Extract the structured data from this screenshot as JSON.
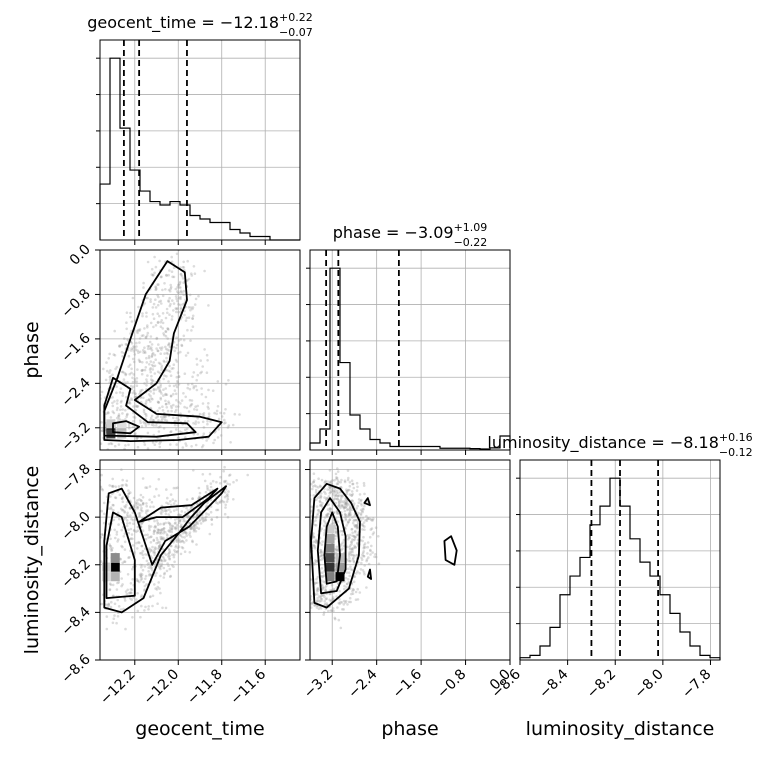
{
  "chart_data": {
    "type": "corner",
    "params": [
      "geocent_time",
      "phase",
      "luminosity_distance"
    ],
    "titles": {
      "geocent_time": {
        "name": "geocent_time",
        "median": "−12.18",
        "plus": "+0.22",
        "minus": "−0.07"
      },
      "phase": {
        "name": "phase",
        "median": "−3.09",
        "plus": "+1.09",
        "minus": "−0.22"
      },
      "luminosity_distance": {
        "name": "luminosity_distance",
        "median": "−8.18",
        "plus": "+0.16",
        "minus": "−0.12"
      }
    },
    "axes": {
      "geocent_time": {
        "range": [
          -12.36,
          -11.44
        ],
        "ticks": [
          -12.2,
          -12.0,
          -11.8,
          -11.6
        ],
        "tick_labels": [
          "−12.2",
          "−12.0",
          "−11.8",
          "−11.6"
        ],
        "label": "geocent_time"
      },
      "phase": {
        "range": [
          -3.6,
          0.0
        ],
        "ticks": [
          -3.2,
          -2.4,
          -1.6,
          -0.8,
          0.0
        ],
        "tick_labels": [
          "−3.2",
          "−2.4",
          "−1.6",
          "−0.8",
          "0.0"
        ],
        "label": "phase"
      },
      "luminosity_distance": {
        "range": [
          -8.6,
          -7.76
        ],
        "ticks": [
          -8.6,
          -8.4,
          -8.2,
          -8.0,
          -7.8
        ],
        "tick_labels": [
          "−8.6",
          "−8.4",
          "−8.2",
          "−8.0",
          "−7.8"
        ],
        "label": "luminosity_distance"
      }
    },
    "histograms": {
      "geocent_time": {
        "bin_edges": [
          -12.36,
          -12.314,
          -12.268,
          -12.222,
          -12.176,
          -12.13,
          -12.084,
          -12.038,
          -11.992,
          -11.946,
          -11.9,
          -11.854,
          -11.808,
          -11.762,
          -11.716,
          -11.67,
          -11.624,
          -11.578,
          -11.532,
          -11.486,
          -11.44
        ],
        "counts": [
          16,
          52,
          32,
          20,
          14,
          11,
          10,
          11,
          10,
          7,
          6,
          5,
          5,
          3,
          2,
          1,
          1,
          0,
          0,
          0
        ],
        "quantiles": [
          -12.25,
          -12.18,
          -11.96
        ]
      },
      "phase": {
        "bin_edges": [
          -3.6,
          -3.42,
          -3.24,
          -3.06,
          -2.88,
          -2.7,
          -2.52,
          -2.34,
          -2.16,
          -1.98,
          -1.8,
          -1.62,
          -1.44,
          -1.26,
          -1.08,
          -0.9,
          -0.72,
          -0.54,
          -0.36,
          -0.18,
          0.0
        ],
        "counts": [
          2,
          6,
          52,
          25,
          10,
          6,
          3,
          2,
          1,
          1,
          1,
          1,
          1,
          0.5,
          0.5,
          0.5,
          0.4,
          0.3,
          0.6,
          4
        ],
        "quantiles": [
          -3.31,
          -3.09,
          -2.0
        ]
      },
      "luminosity_distance": {
        "bin_edges": [
          -8.6,
          -8.558,
          -8.516,
          -8.474,
          -8.432,
          -8.39,
          -8.348,
          -8.306,
          -8.264,
          -8.222,
          -8.18,
          -8.138,
          -8.096,
          -8.054,
          -8.012,
          -7.97,
          -7.928,
          -7.886,
          -7.844,
          -7.802,
          -7.76
        ],
        "counts": [
          0.5,
          1,
          3,
          7,
          14,
          18,
          22,
          29,
          33,
          39,
          33,
          26,
          21,
          18,
          14,
          10,
          6,
          3,
          1,
          0.5
        ],
        "quantiles": [
          -8.3,
          -8.18,
          -8.02
        ]
      }
    },
    "contours": {
      "phase_vs_geocent_time": [
        [
          [
            -12.34,
            -3.42
          ],
          [
            -12.22,
            -3.44
          ],
          [
            -12.0,
            -3.42
          ],
          [
            -11.86,
            -3.36
          ],
          [
            -11.8,
            -3.1
          ],
          [
            -11.9,
            -3.0
          ],
          [
            -12.1,
            -2.95
          ],
          [
            -12.2,
            -2.7
          ],
          [
            -12.1,
            -2.4
          ],
          [
            -12.04,
            -2.0
          ],
          [
            -12.02,
            -1.5
          ],
          [
            -11.96,
            -0.9
          ],
          [
            -11.97,
            -0.4
          ],
          [
            -12.05,
            -0.2
          ],
          [
            -12.15,
            -0.8
          ],
          [
            -12.22,
            -1.6
          ],
          [
            -12.28,
            -2.3
          ],
          [
            -12.34,
            -2.9
          ]
        ],
        [
          [
            -12.34,
            -3.34
          ],
          [
            -12.1,
            -3.36
          ],
          [
            -11.92,
            -3.28
          ],
          [
            -11.96,
            -3.12
          ],
          [
            -12.14,
            -3.1
          ],
          [
            -12.24,
            -2.8
          ],
          [
            -12.22,
            -2.5
          ],
          [
            -12.3,
            -2.3
          ],
          [
            -12.34,
            -2.8
          ]
        ],
        [
          [
            -12.3,
            -3.28
          ],
          [
            -12.22,
            -3.3
          ],
          [
            -12.18,
            -3.18
          ],
          [
            -12.24,
            -3.08
          ],
          [
            -12.3,
            -3.12
          ]
        ]
      ],
      "luminosity_distance_vs_geocent_time": [
        [
          [
            -12.34,
            -8.38
          ],
          [
            -12.26,
            -8.4
          ],
          [
            -12.16,
            -8.34
          ],
          [
            -12.08,
            -8.16
          ],
          [
            -12.0,
            -8.07
          ],
          [
            -11.94,
            -8.0
          ],
          [
            -11.88,
            -7.94
          ],
          [
            -11.78,
            -7.87
          ],
          [
            -11.8,
            -7.9
          ],
          [
            -11.95,
            -8.04
          ],
          [
            -12.06,
            -8.1
          ],
          [
            -12.12,
            -8.2
          ],
          [
            -12.2,
            -7.98
          ],
          [
            -12.26,
            -7.88
          ],
          [
            -12.32,
            -7.9
          ],
          [
            -12.34,
            -8.1
          ]
        ],
        [
          [
            -12.33,
            -8.34
          ],
          [
            -12.2,
            -8.33
          ],
          [
            -12.2,
            -8.18
          ],
          [
            -12.26,
            -8.0
          ],
          [
            -12.3,
            -7.98
          ],
          [
            -12.33,
            -8.12
          ]
        ],
        [
          [
            -12.18,
            -8.02
          ],
          [
            -12.1,
            -8.0
          ],
          [
            -11.98,
            -8.0
          ],
          [
            -11.86,
            -7.92
          ],
          [
            -11.82,
            -7.88
          ],
          [
            -11.94,
            -7.95
          ],
          [
            -12.08,
            -7.96
          ]
        ]
      ],
      "luminosity_distance_vs_phase": [
        [
          [
            -3.52,
            -8.36
          ],
          [
            -3.3,
            -8.38
          ],
          [
            -2.9,
            -8.3
          ],
          [
            -2.72,
            -8.16
          ],
          [
            -2.7,
            -8.02
          ],
          [
            -2.86,
            -7.94
          ],
          [
            -3.06,
            -7.88
          ],
          [
            -3.3,
            -7.86
          ],
          [
            -3.52,
            -7.92
          ],
          [
            -3.58,
            -8.1
          ]
        ],
        [
          [
            -3.4,
            -8.32
          ],
          [
            -3.12,
            -8.31
          ],
          [
            -2.96,
            -8.22
          ],
          [
            -2.96,
            -8.08
          ],
          [
            -3.06,
            -7.98
          ],
          [
            -3.24,
            -7.92
          ],
          [
            -3.4,
            -7.98
          ],
          [
            -3.46,
            -8.14
          ]
        ],
        [
          [
            -3.3,
            -8.28
          ],
          [
            -3.12,
            -8.27
          ],
          [
            -3.06,
            -8.16
          ],
          [
            -3.1,
            -8.04
          ],
          [
            -3.2,
            -7.98
          ],
          [
            -3.3,
            -8.04
          ],
          [
            -3.34,
            -8.16
          ]
        ],
        [
          [
            -1.16,
            -8.18
          ],
          [
            -1.0,
            -8.2
          ],
          [
            -0.96,
            -8.14
          ],
          [
            -1.06,
            -8.08
          ],
          [
            -1.18,
            -8.1
          ]
        ],
        [
          [
            -2.62,
            -7.94
          ],
          [
            -2.52,
            -7.95
          ],
          [
            -2.56,
            -7.92
          ]
        ],
        [
          [
            -2.56,
            -8.25
          ],
          [
            -2.5,
            -8.26
          ],
          [
            -2.52,
            -8.22
          ]
        ]
      ]
    },
    "density_cells": {
      "phase_vs_geocent_time": [
        {
          "x": -12.31,
          "y": -3.22,
          "level": 1.0
        },
        {
          "x": -12.31,
          "y": -3.31,
          "level": 0.75
        },
        {
          "x": -12.26,
          "y": -3.22,
          "level": 0.35
        },
        {
          "x": -12.26,
          "y": -3.31,
          "level": 0.25
        },
        {
          "x": -12.31,
          "y": -3.13,
          "level": 0.2
        },
        {
          "x": -12.26,
          "y": -3.13,
          "level": 0.12
        }
      ],
      "luminosity_distance_vs_geocent_time": [
        {
          "x": -12.29,
          "y": -8.21,
          "level": 1.0
        },
        {
          "x": -12.29,
          "y": -8.17,
          "level": 0.45
        },
        {
          "x": -12.29,
          "y": -8.25,
          "level": 0.3
        },
        {
          "x": -12.33,
          "y": -8.21,
          "level": 0.2
        },
        {
          "x": -12.33,
          "y": -8.25,
          "level": 0.15
        }
      ],
      "luminosity_distance_vs_phase": [
        {
          "x": -3.06,
          "y": -8.25,
          "level": 1.0
        },
        {
          "x": -3.24,
          "y": -8.21,
          "level": 0.8
        },
        {
          "x": -3.24,
          "y": -8.17,
          "level": 0.7
        },
        {
          "x": -3.24,
          "y": -8.13,
          "level": 0.5
        },
        {
          "x": -3.24,
          "y": -8.09,
          "level": 0.35
        },
        {
          "x": -3.06,
          "y": -8.21,
          "level": 0.4
        },
        {
          "x": -3.24,
          "y": -8.25,
          "level": 0.5
        },
        {
          "x": -3.24,
          "y": -8.05,
          "level": 0.2
        },
        {
          "x": -3.06,
          "y": -8.17,
          "level": 0.25
        }
      ]
    }
  }
}
